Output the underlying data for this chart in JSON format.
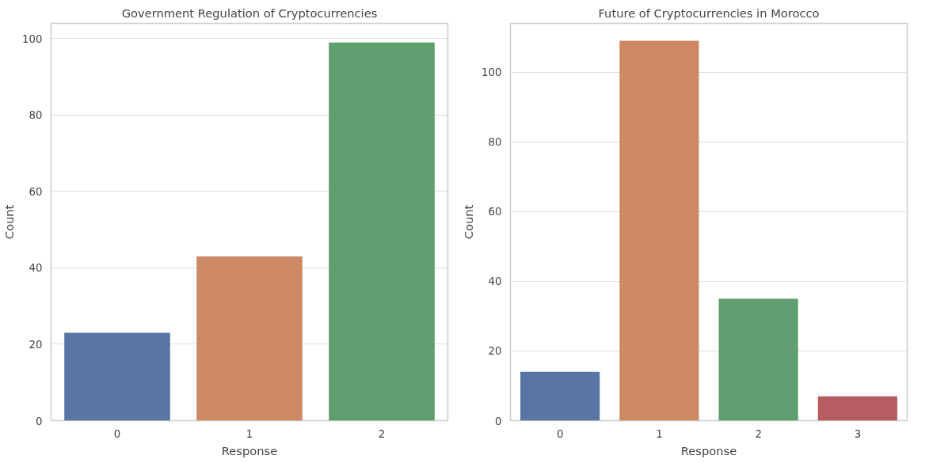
{
  "chart_data": [
    {
      "type": "bar",
      "title": "Government Regulation of Cryptocurrencies",
      "xlabel": "Response",
      "ylabel": "Count",
      "categories": [
        "0",
        "1",
        "2"
      ],
      "values": [
        23,
        43,
        99
      ],
      "colors": [
        "#5975a4",
        "#cc8963",
        "#5f9e6e"
      ],
      "ylim": [
        0,
        104
      ],
      "yticks": [
        0,
        20,
        40,
        60,
        80,
        100
      ],
      "grid": "y"
    },
    {
      "type": "bar",
      "title": "Future of Cryptocurrencies in Morocco",
      "xlabel": "Response",
      "ylabel": "Count",
      "categories": [
        "0",
        "1",
        "2",
        "3"
      ],
      "values": [
        14,
        109,
        35,
        7
      ],
      "colors": [
        "#5975a4",
        "#cc8963",
        "#5f9e6e",
        "#b55d60"
      ],
      "ylim": [
        0,
        114
      ],
      "yticks": [
        0,
        20,
        40,
        60,
        80,
        100
      ],
      "grid": "y"
    }
  ]
}
